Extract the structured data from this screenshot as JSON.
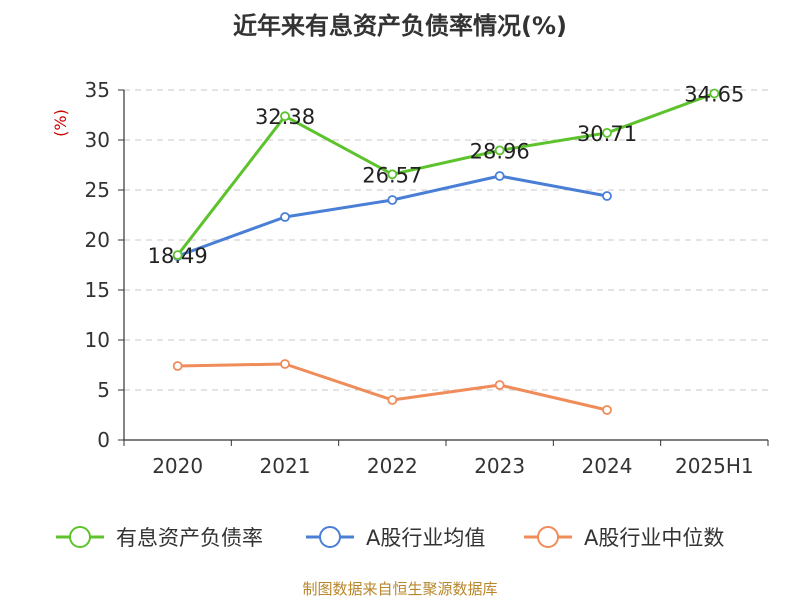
{
  "chart_data": {
    "type": "line",
    "title": "近年来有息资产负债率情况(%)",
    "ylabel": "(%)",
    "xlabel": "",
    "categories": [
      "2020",
      "2021",
      "2022",
      "2023",
      "2024",
      "2025H1"
    ],
    "ylim": [
      0,
      35
    ],
    "yticks": [
      0,
      5,
      10,
      15,
      20,
      25,
      30,
      35
    ],
    "grid": true,
    "legend_position": "bottom",
    "series": [
      {
        "name": "有息资产负债率",
        "color": "#5cc32c",
        "values": [
          18.49,
          32.38,
          26.57,
          28.96,
          30.71,
          34.65
        ],
        "labels": [
          "18.49",
          "32.38",
          "26.57",
          "28.96",
          "30.71",
          "34.65"
        ]
      },
      {
        "name": "A股行业均值",
        "color": "#4a7fd6",
        "values": [
          18.4,
          22.3,
          24.0,
          26.4,
          24.4,
          null
        ]
      },
      {
        "name": "A股行业中位数",
        "color": "#f08c5a",
        "values": [
          7.4,
          7.6,
          4.0,
          5.5,
          3.0,
          null
        ]
      }
    ]
  },
  "source": "制图数据来自恒生聚源数据库"
}
